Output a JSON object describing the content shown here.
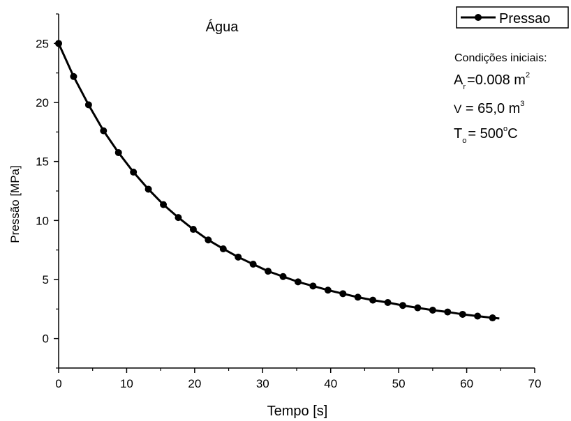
{
  "chart_data": {
    "type": "line",
    "title": "Água",
    "xlabel": "Tempo [s]",
    "ylabel": "Pressão [MPa]",
    "xlim": [
      0,
      70
    ],
    "ylim": [
      -2.5,
      27.5
    ],
    "x_ticks": [
      0,
      10,
      20,
      30,
      40,
      50,
      60,
      70
    ],
    "y_ticks": [
      0,
      5,
      10,
      15,
      20,
      25
    ],
    "grid": false,
    "legend_position": "top-right",
    "series": [
      {
        "name": "Pressao",
        "color": "#000000",
        "x": [
          0,
          2.2,
          4.4,
          6.6,
          8.8,
          11.0,
          13.2,
          15.4,
          17.6,
          19.8,
          22.0,
          24.2,
          26.4,
          28.6,
          30.8,
          33.0,
          35.2,
          37.4,
          39.6,
          41.8,
          44.0,
          46.2,
          48.4,
          50.6,
          52.8,
          55.0,
          57.2,
          59.4,
          61.6,
          63.8
        ],
        "values": [
          25.0,
          22.2,
          19.8,
          17.6,
          15.75,
          14.1,
          12.65,
          11.35,
          10.25,
          9.25,
          8.35,
          7.6,
          6.9,
          6.3,
          5.7,
          5.25,
          4.8,
          4.45,
          4.1,
          3.8,
          3.5,
          3.25,
          3.05,
          2.8,
          2.6,
          2.4,
          2.25,
          2.05,
          1.9,
          1.75
        ],
        "line_end_x": 64.8,
        "line_end_y": 1.7
      }
    ]
  },
  "annotations": {
    "heading": "Condições iniciais:",
    "area_symbol": "A",
    "area_subscript": "r",
    "area_value": "=0.008 m",
    "area_power": "2",
    "volume_symbol": "V",
    "volume_value": " = 65,0 m",
    "volume_power": "3",
    "temp_symbol": "T",
    "temp_subscript": "o",
    "temp_value": "= 500",
    "temp_degree": "o",
    "temp_unit": "C"
  }
}
